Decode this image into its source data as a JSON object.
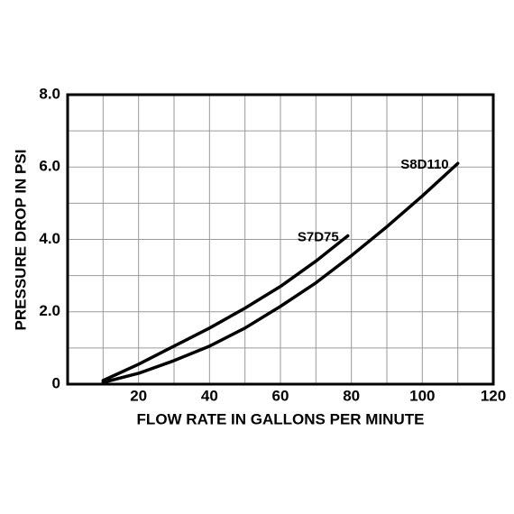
{
  "chart_data": {
    "type": "line",
    "x_label": "FLOW RATE IN GALLONS PER MINUTE",
    "y_label": "PRESSURE DROP IN PSI",
    "xlim": [
      0,
      120
    ],
    "ylim": [
      0,
      8
    ],
    "xticks": [
      20,
      40,
      60,
      80,
      100,
      120
    ],
    "yticks": [
      0,
      {
        "value": 2,
        "label": "2.0"
      },
      {
        "value": 4,
        "label": "4.0"
      },
      {
        "value": 6,
        "label": "6.0"
      },
      {
        "value": 8,
        "label": "8.0"
      }
    ],
    "x_minor_grid": [
      10,
      30,
      50,
      70,
      90,
      110
    ],
    "y_minor_grid": [
      1,
      3,
      5,
      7
    ],
    "grid": true,
    "series": [
      {
        "name": "S7D75",
        "color": "#000000",
        "x": [
          10,
          20,
          30,
          40,
          50,
          60,
          70,
          79
        ],
        "values": [
          0.1,
          0.55,
          1.05,
          1.55,
          2.1,
          2.7,
          3.4,
          4.1
        ]
      },
      {
        "name": "S8D110",
        "color": "#000000",
        "x": [
          10,
          20,
          30,
          40,
          50,
          60,
          70,
          80,
          90,
          100,
          110
        ],
        "values": [
          0.05,
          0.3,
          0.65,
          1.05,
          1.55,
          2.15,
          2.8,
          3.55,
          4.35,
          5.2,
          6.1
        ]
      }
    ]
  }
}
